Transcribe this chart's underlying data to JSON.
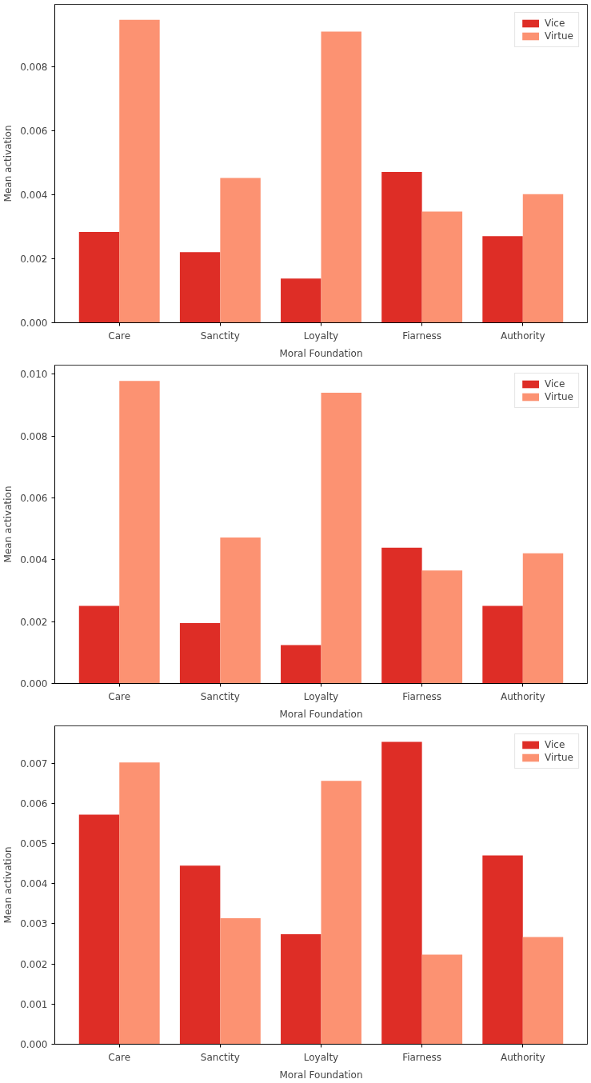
{
  "chart_data": [
    {
      "type": "bar",
      "xlabel": "Moral Foundation",
      "ylabel": "Mean activation",
      "categories": [
        "Care",
        "Sanctity",
        "Loyalty",
        "Fiarness",
        "Authority"
      ],
      "series": [
        {
          "name": "Vice",
          "color": "#de2d26",
          "values": [
            0.00284,
            0.00221,
            0.00138,
            0.00472,
            0.00271
          ]
        },
        {
          "name": "Virtue",
          "color": "#fc9272",
          "values": [
            0.00948,
            0.00453,
            0.00911,
            0.00348,
            0.00402
          ]
        }
      ],
      "ylim": [
        0,
        0.00996
      ],
      "yticks": [
        {
          "value": 0,
          "label": "0.000"
        },
        {
          "value": 0.002,
          "label": "0.002"
        },
        {
          "value": 0.004,
          "label": "0.004"
        },
        {
          "value": 0.006,
          "label": "0.006"
        },
        {
          "value": 0.008,
          "label": "0.008"
        }
      ],
      "grid": false,
      "legend": "top right"
    },
    {
      "type": "bar",
      "xlabel": "Moral Foundation",
      "ylabel": "Mean activation",
      "categories": [
        "Care",
        "Sanctity",
        "Loyalty",
        "Fiarness",
        "Authority"
      ],
      "series": [
        {
          "name": "Vice",
          "color": "#de2d26",
          "values": [
            0.00251,
            0.00195,
            0.00124,
            0.00439,
            0.00251
          ]
        },
        {
          "name": "Virtue",
          "color": "#fc9272",
          "values": [
            0.00978,
            0.00472,
            0.0094,
            0.00365,
            0.00421
          ]
        }
      ],
      "ylim": [
        0,
        0.01029
      ],
      "yticks": [
        {
          "value": 0,
          "label": "0.000"
        },
        {
          "value": 0.002,
          "label": "0.002"
        },
        {
          "value": 0.004,
          "label": "0.004"
        },
        {
          "value": 0.006,
          "label": "0.006"
        },
        {
          "value": 0.008,
          "label": "0.008"
        },
        {
          "value": 0.01,
          "label": "0.010"
        }
      ],
      "grid": false,
      "legend": "top right"
    },
    {
      "type": "bar",
      "xlabel": "Moral Foundation",
      "ylabel": "Mean activation",
      "categories": [
        "Care",
        "Sanctity",
        "Loyalty",
        "Fiarness",
        "Authority"
      ],
      "series": [
        {
          "name": "Vice",
          "color": "#de2d26",
          "values": [
            0.00572,
            0.00445,
            0.00274,
            0.00753,
            0.0047
          ]
        },
        {
          "name": "Virtue",
          "color": "#fc9272",
          "values": [
            0.00702,
            0.00314,
            0.00656,
            0.00223,
            0.00267
          ]
        }
      ],
      "ylim": [
        0,
        0.00793
      ],
      "yticks": [
        {
          "value": 0,
          "label": "0.000"
        },
        {
          "value": 0.001,
          "label": "0.001"
        },
        {
          "value": 0.002,
          "label": "0.002"
        },
        {
          "value": 0.003,
          "label": "0.003"
        },
        {
          "value": 0.004,
          "label": "0.004"
        },
        {
          "value": 0.005,
          "label": "0.005"
        },
        {
          "value": 0.006,
          "label": "0.006"
        },
        {
          "value": 0.007,
          "label": "0.007"
        }
      ],
      "grid": false,
      "legend": "top right"
    }
  ]
}
